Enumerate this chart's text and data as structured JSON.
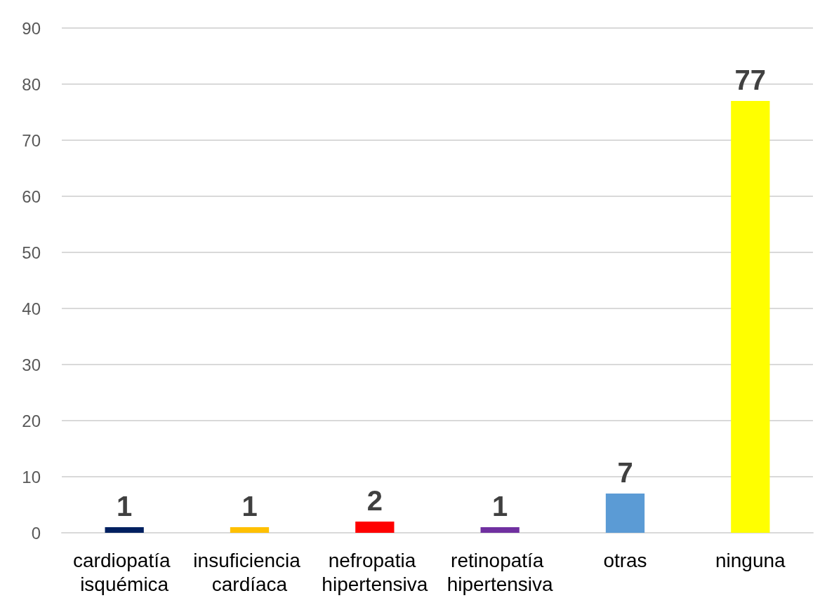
{
  "chart_data": {
    "type": "bar",
    "categories": [
      "cardiopatía isquémica",
      "insuficiencia cardíaca",
      "nefropatia hipertensiva",
      "retinopatía hipertensiva",
      "otras",
      "ninguna"
    ],
    "values": [
      1,
      1,
      2,
      1,
      7,
      77
    ],
    "colors": [
      "#002060",
      "#ffc000",
      "#ff0000",
      "#7030a0",
      "#5b9bd5",
      "#ffff00"
    ],
    "ylim": [
      0,
      90
    ],
    "yticks": [
      0,
      10,
      20,
      30,
      40,
      50,
      60,
      70,
      80,
      90
    ],
    "grid": "y",
    "data_labels": true
  }
}
